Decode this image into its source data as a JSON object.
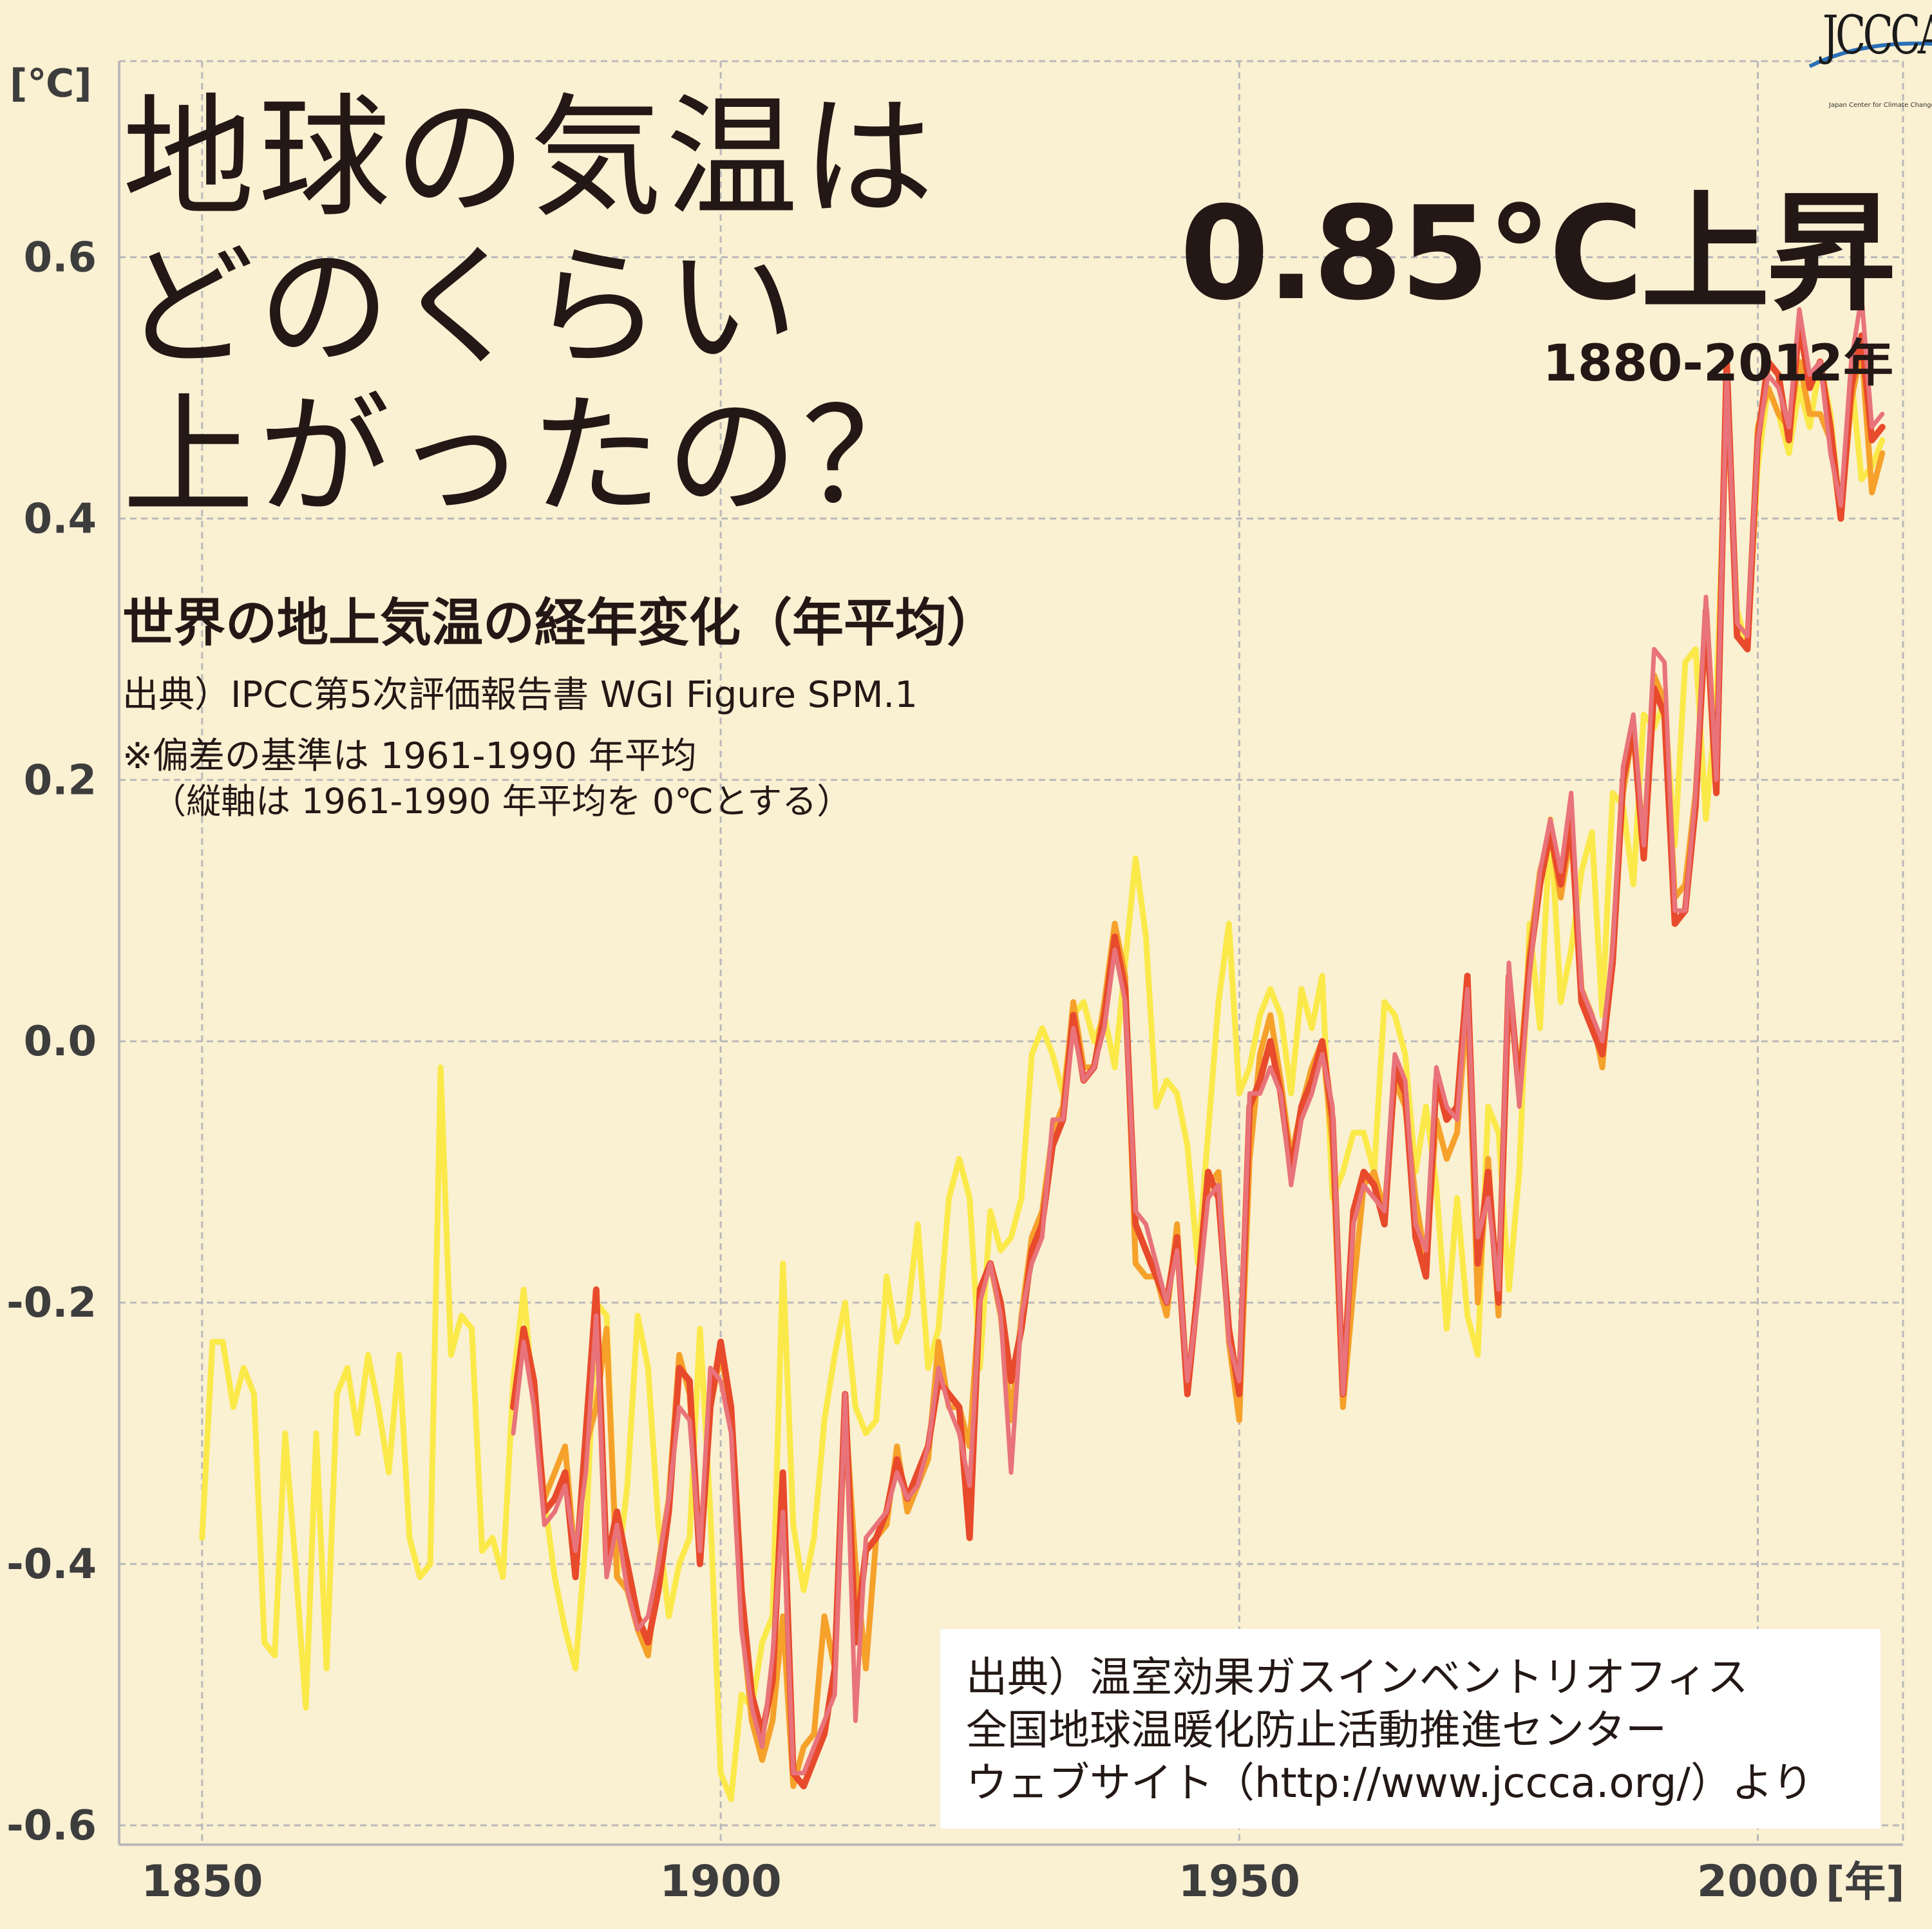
{
  "header": {
    "headline_lines": [
      "地球の気温は",
      "どのくらい",
      "上がったの？"
    ],
    "big_stat": "0.85°C上昇",
    "period": "1880-2012年",
    "subtitle": "世界の地上気温の経年変化（年平均）",
    "source": "出典）IPCC第5次評価報告書 WGI Figure SPM.1",
    "note_line1": "※偏差の基準は 1961-1990 年平均",
    "note_line2": "（縦軸は 1961-1990 年平均を 0℃とする）"
  },
  "credit": {
    "line1": "出典）温室効果ガスインベントリオフィス",
    "line2": "全国地球温暖化防止活動推進センター",
    "line3": "ウェブサイト（http://www.jccca.org/）より"
  },
  "logo": {
    "text": "JCCCA",
    "subtext": "Japan Center for Climate Change Actions"
  },
  "colors": {
    "background": "#faf0d2",
    "grid": "#b9b9b9",
    "axis_text": "#3d3d3d",
    "series": [
      "#fbe94a",
      "#f5a12a",
      "#e84a2c",
      "#e8737a"
    ]
  },
  "chart_data": {
    "type": "line",
    "title": "世界の地上気温の経年変化（年平均）",
    "ylabel": "[℃]",
    "xlabel": "[年]",
    "xlim": [
      1842,
      2014
    ],
    "ylim": [
      -0.6,
      0.75
    ],
    "xticks": [
      1850,
      1900,
      1950,
      2000
    ],
    "yticks": [
      -0.6,
      -0.4,
      -0.2,
      0.0,
      0.2,
      0.4,
      0.6
    ],
    "grid": true,
    "series": [
      {
        "color": "#fbe94a",
        "x": [
          1850,
          1851,
          1852,
          1853,
          1854,
          1855,
          1856,
          1857,
          1858,
          1859,
          1860,
          1861,
          1862,
          1863,
          1864,
          1865,
          1866,
          1867,
          1868,
          1869,
          1870,
          1871,
          1872,
          1873,
          1874,
          1875,
          1876,
          1877,
          1878,
          1879,
          1880,
          1881,
          1882,
          1883,
          1884,
          1885,
          1886,
          1887,
          1888,
          1889,
          1890,
          1891,
          1892,
          1893,
          1894,
          1895,
          1896,
          1897,
          1898,
          1899,
          1900,
          1901,
          1902,
          1903,
          1904,
          1905,
          1906,
          1907,
          1908,
          1909,
          1910,
          1911,
          1912,
          1913,
          1914,
          1915,
          1916,
          1917,
          1918,
          1919,
          1920,
          1921,
          1922,
          1923,
          1924,
          1925,
          1926,
          1927,
          1928,
          1929,
          1930,
          1931,
          1932,
          1933,
          1934,
          1935,
          1936,
          1937,
          1938,
          1939,
          1940,
          1941,
          1942,
          1943,
          1944,
          1945,
          1946,
          1947,
          1948,
          1949,
          1950,
          1951,
          1952,
          1953,
          1954,
          1955,
          1956,
          1957,
          1958,
          1959,
          1960,
          1961,
          1962,
          1963,
          1964,
          1965,
          1966,
          1967,
          1968,
          1969,
          1970,
          1971,
          1972,
          1973,
          1974,
          1975,
          1976,
          1977,
          1978,
          1979,
          1980,
          1981,
          1982,
          1983,
          1984,
          1985,
          1986,
          1987,
          1988,
          1989,
          1990,
          1991,
          1992,
          1993,
          1994,
          1995,
          1996,
          1997,
          1998,
          1999,
          2000,
          2001,
          2002,
          2003,
          2004,
          2005,
          2006,
          2007,
          2008,
          2009,
          2010,
          2011,
          2012
        ],
        "values": [
          -0.38,
          -0.23,
          -0.23,
          -0.28,
          -0.25,
          -0.27,
          -0.46,
          -0.47,
          -0.3,
          -0.4,
          -0.51,
          -0.3,
          -0.48,
          -0.27,
          -0.25,
          -0.3,
          -0.24,
          -0.28,
          -0.33,
          -0.24,
          -0.38,
          -0.41,
          -0.4,
          -0.02,
          -0.24,
          -0.21,
          -0.22,
          -0.39,
          -0.38,
          -0.41,
          -0.26,
          -0.19,
          -0.28,
          -0.35,
          -0.41,
          -0.45,
          -0.48,
          -0.38,
          -0.2,
          -0.21,
          -0.41,
          -0.34,
          -0.21,
          -0.25,
          -0.37,
          -0.44,
          -0.4,
          -0.38,
          -0.22,
          -0.36,
          -0.56,
          -0.58,
          -0.5,
          -0.51,
          -0.46,
          -0.44,
          -0.17,
          -0.37,
          -0.42,
          -0.38,
          -0.29,
          -0.24,
          -0.2,
          -0.28,
          -0.3,
          -0.29,
          -0.18,
          -0.23,
          -0.21,
          -0.14,
          -0.25,
          -0.22,
          -0.12,
          -0.09,
          -0.12,
          -0.25,
          -0.13,
          -0.16,
          -0.15,
          -0.12,
          -0.01,
          0.01,
          -0.01,
          -0.04,
          0.02,
          0.03,
          0.0,
          0.02,
          -0.02,
          0.06,
          0.14,
          0.08,
          -0.05,
          -0.03,
          -0.04,
          -0.08,
          -0.17,
          -0.07,
          0.03,
          0.09,
          -0.04,
          -0.02,
          0.02,
          0.04,
          0.02,
          -0.04,
          0.04,
          0.01,
          0.05,
          -0.12,
          -0.1,
          -0.07,
          -0.07,
          -0.1,
          0.03,
          0.02,
          -0.01,
          -0.1,
          -0.05,
          -0.11,
          -0.22,
          -0.12,
          -0.21,
          -0.24,
          -0.05,
          -0.07,
          -0.19,
          -0.1,
          0.09,
          0.01,
          0.17,
          0.03,
          0.07,
          0.13,
          0.16,
          0.02,
          0.19,
          0.18,
          0.12,
          0.25,
          0.24,
          0.26,
          0.15,
          0.29,
          0.3,
          0.17,
          0.26,
          0.49,
          0.33,
          0.3,
          0.44,
          0.5,
          0.48,
          0.45,
          0.5,
          0.47,
          0.52,
          0.48,
          0.4,
          0.51,
          0.43,
          0.44,
          0.46
        ],
        "note": "extends back to 1850"
      },
      {
        "color": "#f5a12a",
        "x": [
          1880,
          1881,
          1882,
          1883,
          1884,
          1885,
          1886,
          1887,
          1888,
          1889,
          1890,
          1891,
          1892,
          1893,
          1894,
          1895,
          1896,
          1897,
          1898,
          1899,
          1900,
          1901,
          1902,
          1903,
          1904,
          1905,
          1906,
          1907,
          1908,
          1909,
          1910,
          1911,
          1912,
          1913,
          1914,
          1915,
          1916,
          1917,
          1918,
          1919,
          1920,
          1921,
          1922,
          1923,
          1924,
          1925,
          1926,
          1927,
          1928,
          1929,
          1930,
          1931,
          1932,
          1933,
          1934,
          1935,
          1936,
          1937,
          1938,
          1939,
          1940,
          1941,
          1942,
          1943,
          1944,
          1945,
          1946,
          1947,
          1948,
          1949,
          1950,
          1951,
          1952,
          1953,
          1954,
          1955,
          1956,
          1957,
          1958,
          1959,
          1960,
          1961,
          1962,
          1963,
          1964,
          1965,
          1966,
          1967,
          1968,
          1969,
          1970,
          1971,
          1972,
          1973,
          1974,
          1975,
          1976,
          1977,
          1978,
          1979,
          1980,
          1981,
          1982,
          1983,
          1984,
          1985,
          1986,
          1987,
          1988,
          1989,
          1990,
          1991,
          1992,
          1993,
          1994,
          1995,
          1996,
          1997,
          1998,
          1999,
          2000,
          2001,
          2002,
          2003,
          2004,
          2005,
          2006,
          2007,
          2008,
          2009,
          2010,
          2011,
          2012
        ],
        "values": [
          -0.28,
          -0.23,
          -0.27,
          -0.35,
          -0.33,
          -0.31,
          -0.4,
          -0.31,
          -0.28,
          -0.22,
          -0.41,
          -0.42,
          -0.45,
          -0.47,
          -0.4,
          -0.35,
          -0.24,
          -0.27,
          -0.39,
          -0.28,
          -0.24,
          -0.28,
          -0.44,
          -0.52,
          -0.55,
          -0.52,
          -0.44,
          -0.57,
          -0.54,
          -0.53,
          -0.44,
          -0.48,
          -0.28,
          -0.4,
          -0.48,
          -0.38,
          -0.37,
          -0.31,
          -0.36,
          -0.34,
          -0.32,
          -0.23,
          -0.28,
          -0.28,
          -0.31,
          -0.19,
          -0.17,
          -0.21,
          -0.29,
          -0.21,
          -0.15,
          -0.13,
          -0.07,
          -0.05,
          0.03,
          -0.02,
          -0.02,
          0.03,
          0.09,
          0.05,
          -0.17,
          -0.18,
          -0.18,
          -0.21,
          -0.14,
          -0.27,
          -0.19,
          -0.11,
          -0.1,
          -0.23,
          -0.29,
          -0.09,
          -0.01,
          0.02,
          -0.03,
          -0.09,
          -0.05,
          -0.02,
          0.0,
          -0.08,
          -0.28,
          -0.19,
          -0.11,
          -0.1,
          -0.13,
          -0.03,
          -0.05,
          -0.12,
          -0.17,
          -0.06,
          -0.09,
          -0.07,
          0.03,
          -0.2,
          -0.09,
          -0.21,
          0.04,
          -0.03,
          0.07,
          0.13,
          0.16,
          0.11,
          0.16,
          0.04,
          0.02,
          -0.02,
          0.07,
          0.19,
          0.24,
          0.15,
          0.28,
          0.26,
          0.11,
          0.12,
          0.19,
          0.32,
          0.2,
          0.52,
          0.31,
          0.3,
          0.47,
          0.5,
          0.48,
          0.47,
          0.52,
          0.48,
          0.48,
          0.46,
          0.4,
          0.49,
          0.53,
          0.42,
          0.45
        ]
      },
      {
        "color": "#e84a2c",
        "x": [
          1880,
          1881,
          1882,
          1883,
          1884,
          1885,
          1886,
          1887,
          1888,
          1889,
          1890,
          1891,
          1892,
          1893,
          1894,
          1895,
          1896,
          1897,
          1898,
          1899,
          1900,
          1901,
          1902,
          1903,
          1904,
          1905,
          1906,
          1907,
          1908,
          1909,
          1910,
          1911,
          1912,
          1913,
          1914,
          1915,
          1916,
          1917,
          1918,
          1919,
          1920,
          1921,
          1922,
          1923,
          1924,
          1925,
          1926,
          1927,
          1928,
          1929,
          1930,
          1931,
          1932,
          1933,
          1934,
          1935,
          1936,
          1937,
          1938,
          1939,
          1940,
          1941,
          1942,
          1943,
          1944,
          1945,
          1946,
          1947,
          1948,
          1949,
          1950,
          1951,
          1952,
          1953,
          1954,
          1955,
          1956,
          1957,
          1958,
          1959,
          1960,
          1961,
          1962,
          1963,
          1964,
          1965,
          1966,
          1967,
          1968,
          1969,
          1970,
          1971,
          1972,
          1973,
          1974,
          1975,
          1976,
          1977,
          1978,
          1979,
          1980,
          1981,
          1982,
          1983,
          1984,
          1985,
          1986,
          1987,
          1988,
          1989,
          1990,
          1991,
          1992,
          1993,
          1994,
          1995,
          1996,
          1997,
          1998,
          1999,
          2000,
          2001,
          2002,
          2003,
          2004,
          2005,
          2006,
          2007,
          2008,
          2009,
          2010,
          2011,
          2012
        ],
        "values": [
          -0.28,
          -0.22,
          -0.26,
          -0.36,
          -0.35,
          -0.33,
          -0.41,
          -0.3,
          -0.19,
          -0.4,
          -0.36,
          -0.4,
          -0.44,
          -0.46,
          -0.42,
          -0.36,
          -0.25,
          -0.26,
          -0.4,
          -0.28,
          -0.23,
          -0.28,
          -0.42,
          -0.5,
          -0.53,
          -0.49,
          -0.33,
          -0.56,
          -0.57,
          -0.55,
          -0.53,
          -0.48,
          -0.27,
          -0.46,
          -0.39,
          -0.38,
          -0.36,
          -0.32,
          -0.35,
          -0.33,
          -0.31,
          -0.26,
          -0.27,
          -0.28,
          -0.38,
          -0.19,
          -0.17,
          -0.2,
          -0.26,
          -0.22,
          -0.16,
          -0.14,
          -0.08,
          -0.06,
          0.02,
          -0.03,
          -0.02,
          0.02,
          0.08,
          0.04,
          -0.14,
          -0.16,
          -0.18,
          -0.2,
          -0.15,
          -0.27,
          -0.19,
          -0.1,
          -0.12,
          -0.22,
          -0.27,
          -0.05,
          -0.03,
          0.0,
          -0.04,
          -0.1,
          -0.05,
          -0.03,
          0.0,
          -0.06,
          -0.27,
          -0.13,
          -0.1,
          -0.11,
          -0.14,
          -0.02,
          -0.04,
          -0.15,
          -0.18,
          -0.03,
          -0.06,
          -0.05,
          0.05,
          -0.17,
          -0.1,
          -0.2,
          0.05,
          -0.04,
          0.06,
          0.12,
          0.16,
          0.12,
          0.17,
          0.03,
          0.01,
          -0.01,
          0.06,
          0.2,
          0.24,
          0.14,
          0.27,
          0.25,
          0.09,
          0.1,
          0.18,
          0.33,
          0.19,
          0.52,
          0.31,
          0.3,
          0.46,
          0.52,
          0.51,
          0.46,
          0.55,
          0.5,
          0.52,
          0.47,
          0.4,
          0.5,
          0.54,
          0.46,
          0.47
        ]
      },
      {
        "color": "#e8737a",
        "x": [
          1880,
          1881,
          1882,
          1883,
          1884,
          1885,
          1886,
          1887,
          1888,
          1889,
          1890,
          1891,
          1892,
          1893,
          1894,
          1895,
          1896,
          1897,
          1898,
          1899,
          1900,
          1901,
          1902,
          1903,
          1904,
          1905,
          1906,
          1907,
          1908,
          1909,
          1910,
          1911,
          1912,
          1913,
          1914,
          1915,
          1916,
          1917,
          1918,
          1919,
          1920,
          1921,
          1922,
          1923,
          1924,
          1925,
          1926,
          1927,
          1928,
          1929,
          1930,
          1931,
          1932,
          1933,
          1934,
          1935,
          1936,
          1937,
          1938,
          1939,
          1940,
          1941,
          1942,
          1943,
          1944,
          1945,
          1946,
          1947,
          1948,
          1949,
          1950,
          1951,
          1952,
          1953,
          1954,
          1955,
          1956,
          1957,
          1958,
          1959,
          1960,
          1961,
          1962,
          1963,
          1964,
          1965,
          1966,
          1967,
          1968,
          1969,
          1970,
          1971,
          1972,
          1973,
          1974,
          1975,
          1976,
          1977,
          1978,
          1979,
          1980,
          1981,
          1982,
          1983,
          1984,
          1985,
          1986,
          1987,
          1988,
          1989,
          1990,
          1991,
          1992,
          1993,
          1994,
          1995,
          1996,
          1997,
          1998,
          1999,
          2000,
          2001,
          2002,
          2003,
          2004,
          2005,
          2006,
          2007,
          2008,
          2009,
          2010,
          2011,
          2012
        ],
        "values": [
          -0.3,
          -0.23,
          -0.28,
          -0.37,
          -0.36,
          -0.34,
          -0.39,
          -0.33,
          -0.21,
          -0.41,
          -0.37,
          -0.42,
          -0.45,
          -0.44,
          -0.4,
          -0.35,
          -0.28,
          -0.29,
          -0.39,
          -0.25,
          -0.26,
          -0.3,
          -0.45,
          -0.51,
          -0.54,
          -0.47,
          -0.36,
          -0.56,
          -0.56,
          -0.54,
          -0.52,
          -0.5,
          -0.27,
          -0.52,
          -0.38,
          -0.37,
          -0.36,
          -0.33,
          -0.35,
          -0.34,
          -0.31,
          -0.25,
          -0.28,
          -0.3,
          -0.34,
          -0.2,
          -0.17,
          -0.21,
          -0.33,
          -0.21,
          -0.17,
          -0.15,
          -0.06,
          -0.06,
          0.01,
          -0.03,
          -0.02,
          0.01,
          0.07,
          0.03,
          -0.13,
          -0.14,
          -0.17,
          -0.2,
          -0.16,
          -0.26,
          -0.2,
          -0.12,
          -0.11,
          -0.23,
          -0.26,
          -0.04,
          -0.04,
          -0.02,
          -0.04,
          -0.11,
          -0.06,
          -0.04,
          -0.01,
          -0.05,
          -0.27,
          -0.14,
          -0.11,
          -0.12,
          -0.13,
          -0.01,
          -0.03,
          -0.14,
          -0.16,
          -0.02,
          -0.05,
          -0.06,
          0.04,
          -0.15,
          -0.12,
          -0.19,
          0.06,
          -0.05,
          0.05,
          0.13,
          0.17,
          0.13,
          0.19,
          0.04,
          0.02,
          0.0,
          0.07,
          0.21,
          0.25,
          0.15,
          0.3,
          0.29,
          0.1,
          0.1,
          0.19,
          0.34,
          0.2,
          0.51,
          0.32,
          0.31,
          0.46,
          0.51,
          0.5,
          0.47,
          0.56,
          0.51,
          0.52,
          0.45,
          0.41,
          0.52,
          0.57,
          0.47,
          0.48
        ]
      }
    ]
  }
}
